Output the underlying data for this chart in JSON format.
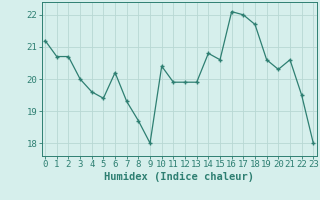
{
  "x": [
    0,
    1,
    2,
    3,
    4,
    5,
    6,
    7,
    8,
    9,
    10,
    11,
    12,
    13,
    14,
    15,
    16,
    17,
    18,
    19,
    20,
    21,
    22,
    23
  ],
  "y": [
    21.2,
    20.7,
    20.7,
    20.0,
    19.6,
    19.4,
    20.2,
    19.3,
    18.7,
    18.0,
    20.4,
    19.9,
    19.9,
    19.9,
    20.8,
    20.6,
    22.1,
    22.0,
    21.7,
    20.6,
    20.3,
    20.6,
    19.5,
    18.0
  ],
  "line_color": "#2e7f72",
  "marker_color": "#2e7f72",
  "bg_color": "#d6efec",
  "grid_color": "#b8d8d4",
  "axis_color": "#2e7f72",
  "tick_label_color": "#2e7f72",
  "xlabel": "Humidex (Indice chaleur)",
  "ylim": [
    17.6,
    22.4
  ],
  "yticks": [
    18,
    19,
    20,
    21,
    22
  ],
  "xticks": [
    0,
    1,
    2,
    3,
    4,
    5,
    6,
    7,
    8,
    9,
    10,
    11,
    12,
    13,
    14,
    15,
    16,
    17,
    18,
    19,
    20,
    21,
    22,
    23
  ],
  "xlabel_fontsize": 7.5,
  "tick_fontsize": 6.5,
  "xlim": [
    -0.3,
    23.3
  ]
}
